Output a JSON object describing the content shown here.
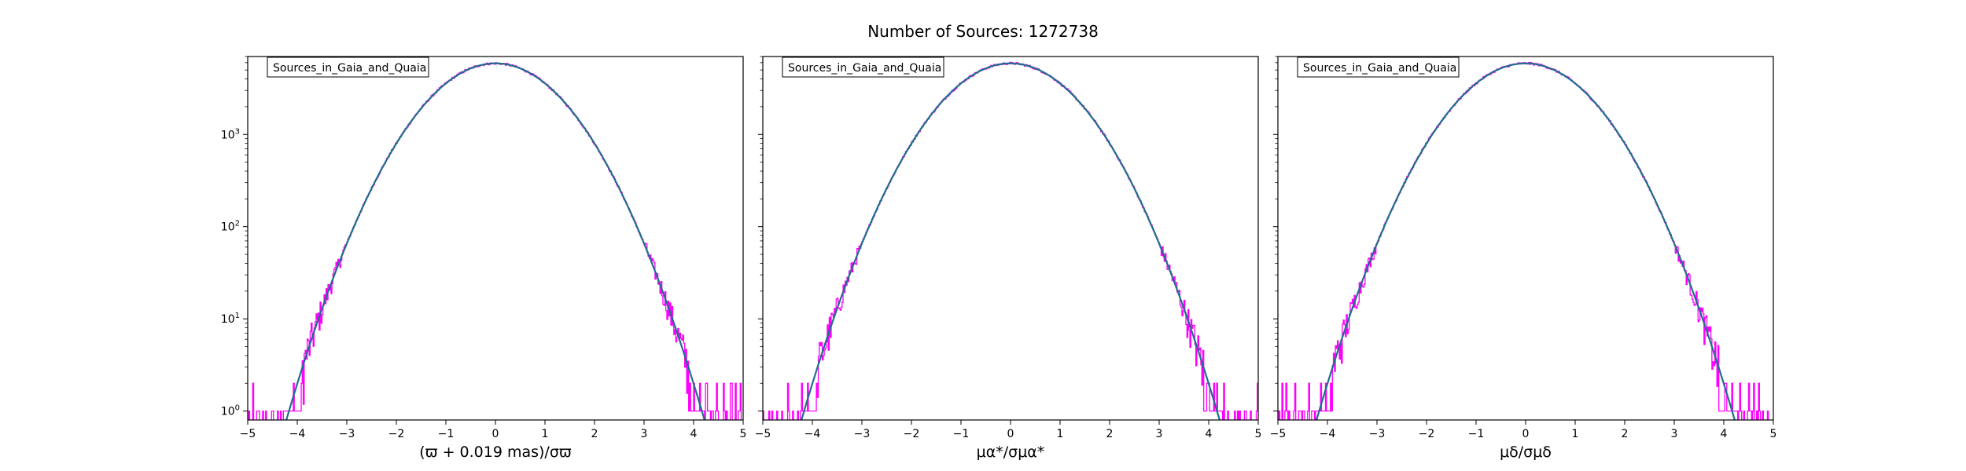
{
  "figure": {
    "title": "Number of Sources: 1272738"
  },
  "chart_data": [
    {
      "type": "histogram",
      "legend": "Sources_in_Gaia_and_Quaia",
      "legend_position": "top-left",
      "xlabel": "(ϖ + 0.019 mas)/σϖ",
      "xlim": [
        -5,
        5
      ],
      "ylim": [
        0.8,
        7000
      ],
      "yscale": "log",
      "x_ticks": [
        "−5",
        "−4",
        "−3",
        "−2",
        "−1",
        "0",
        "1",
        "2",
        "3",
        "4",
        "5"
      ],
      "y_ticks": [
        {
          "base": "10",
          "exp": "0",
          "value": 1
        },
        {
          "base": "10",
          "exp": "1",
          "value": 10
        },
        {
          "base": "10",
          "exp": "2",
          "value": 100
        },
        {
          "base": "10",
          "exp": "3",
          "value": 1000
        }
      ],
      "fit_peak": 5900,
      "histogram_color": "#ff00ff",
      "fit_color": "#1f6f8b"
    },
    {
      "type": "histogram",
      "legend": "Sources_in_Gaia_and_Quaia",
      "legend_position": "top-left",
      "xlabel": "μα*/σμα*",
      "xlim": [
        -5,
        5
      ],
      "ylim": [
        0.8,
        7000
      ],
      "yscale": "log",
      "x_ticks": [
        "−5",
        "−4",
        "−3",
        "−2",
        "−1",
        "0",
        "1",
        "2",
        "3",
        "4",
        "5"
      ],
      "y_ticks": [
        {
          "base": "10",
          "exp": "0",
          "value": 1
        },
        {
          "base": "10",
          "exp": "1",
          "value": 10
        },
        {
          "base": "10",
          "exp": "2",
          "value": 100
        },
        {
          "base": "10",
          "exp": "3",
          "value": 1000
        }
      ],
      "fit_peak": 5900,
      "histogram_color": "#ff00ff",
      "fit_color": "#1f6f8b"
    },
    {
      "type": "histogram",
      "legend": "Sources_in_Gaia_and_Quaia",
      "legend_position": "top-left",
      "xlabel": "μδ/σμδ",
      "xlim": [
        -5,
        5
      ],
      "ylim": [
        0.8,
        7000
      ],
      "yscale": "log",
      "x_ticks": [
        "−5",
        "−4",
        "−3",
        "−2",
        "−1",
        "0",
        "1",
        "2",
        "3",
        "4",
        "5"
      ],
      "y_ticks": [
        {
          "base": "10",
          "exp": "0",
          "value": 1
        },
        {
          "base": "10",
          "exp": "1",
          "value": 10
        },
        {
          "base": "10",
          "exp": "2",
          "value": 100
        },
        {
          "base": "10",
          "exp": "3",
          "value": 1000
        }
      ],
      "fit_peak": 5900,
      "histogram_color": "#ff00ff",
      "fit_color": "#1f6f8b"
    }
  ]
}
